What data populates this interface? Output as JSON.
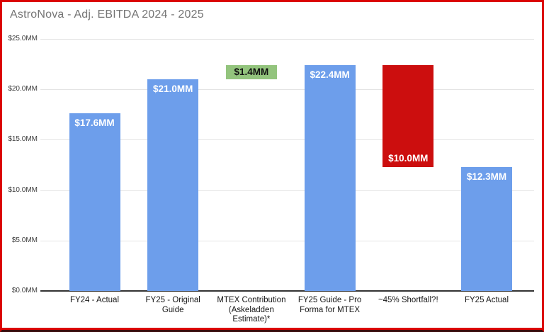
{
  "window": {
    "title": "AstroNova - Adj. EBITDA 2024 - 2025"
  },
  "colors": {
    "frame_border": "#db0303",
    "frame_bottom_strip": "#3a0b0b",
    "background": "#ffffff",
    "title_text": "#757575",
    "bar_blue": "#6d9eeb",
    "bar_green": "#93c47d",
    "bar_red": "#cc0e0e",
    "gridline": "#e4e4e4",
    "axis_line": "#333333",
    "label_white": "#ffffff",
    "label_black": "#111111"
  },
  "chart_data": {
    "type": "bar",
    "title": "AstroNova - Adj. EBITDA 2024 - 2025",
    "xlabel": "",
    "ylabel": "",
    "ylim": [
      0,
      25
    ],
    "grid": true,
    "legend": "none",
    "y_ticks": [
      {
        "value": 0,
        "label": "$0.0MM"
      },
      {
        "value": 5,
        "label": "$5.0MM"
      },
      {
        "value": 10,
        "label": "$10.0MM"
      },
      {
        "value": 15,
        "label": "$15.0MM"
      },
      {
        "value": 20,
        "label": "$20.0MM"
      },
      {
        "value": 25,
        "label": "$25.0MM"
      }
    ],
    "categories": [
      "FY24 - Actual",
      "FY25 - Original Guide",
      "MTEX Contribution (Askeladden Estimate)*",
      "FY25 Guide - Pro Forma for MTEX",
      "~45% Shortfall?!",
      "FY25 Actual"
    ],
    "bars": [
      {
        "category": "FY24 - Actual",
        "category_lines": [
          "FY24 - Actual"
        ],
        "value": 17.6,
        "start": 0,
        "end": 17.6,
        "data_label": "$17.6MM",
        "color": "bar_blue",
        "label_color": "label_white",
        "label_position": "top"
      },
      {
        "category": "FY25 - Original Guide",
        "category_lines": [
          "FY25 - Original",
          "Guide"
        ],
        "value": 21.0,
        "start": 0,
        "end": 21.0,
        "data_label": "$21.0MM",
        "color": "bar_blue",
        "label_color": "label_white",
        "label_position": "top"
      },
      {
        "category": "MTEX Contribution (Askeladden Estimate)*",
        "category_lines": [
          "MTEX Contribution",
          "(Askeladden",
          "Estimate)*"
        ],
        "value": 1.4,
        "start": 21.0,
        "end": 22.4,
        "data_label": "$1.4MM",
        "color": "bar_green",
        "label_color": "label_black",
        "label_position": "middle"
      },
      {
        "category": "FY25 Guide - Pro Forma for MTEX",
        "category_lines": [
          "FY25 Guide - Pro",
          "Forma for MTEX"
        ],
        "value": 22.4,
        "start": 0,
        "end": 22.4,
        "data_label": "$22.4MM",
        "color": "bar_blue",
        "label_color": "label_white",
        "label_position": "top"
      },
      {
        "category": "~45% Shortfall?!",
        "category_lines": [
          "~45% Shortfall?!"
        ],
        "value": 10.0,
        "start": 12.3,
        "end": 22.4,
        "data_label": "$10.0MM",
        "color": "bar_red",
        "label_color": "label_white",
        "label_position": "bottom"
      },
      {
        "category": "FY25 Actual",
        "category_lines": [
          "FY25 Actual"
        ],
        "value": 12.3,
        "start": 0,
        "end": 12.3,
        "data_label": "$12.3MM",
        "color": "bar_blue",
        "label_color": "label_white",
        "label_position": "top"
      }
    ]
  }
}
